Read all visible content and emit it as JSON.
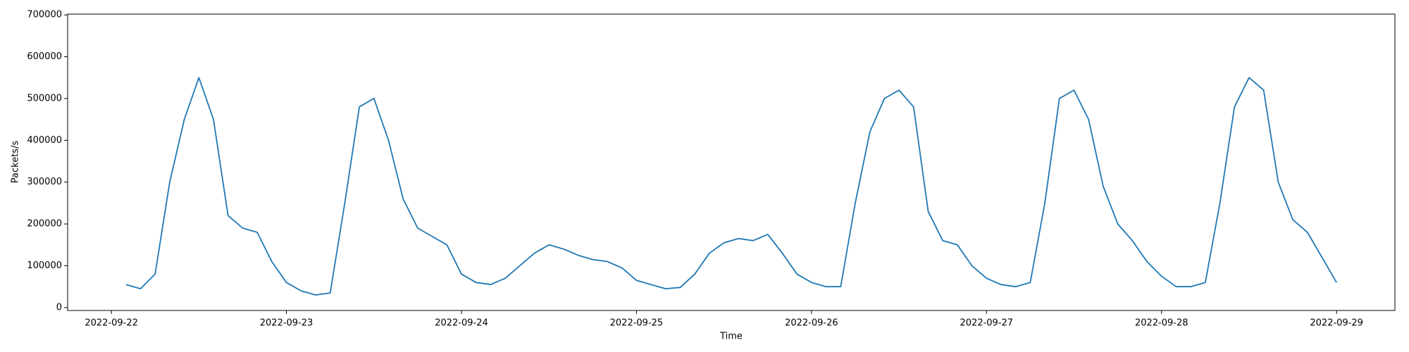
{
  "chart_data": {
    "type": "line",
    "x_label": "Time",
    "y_label": "Packets/s",
    "x": [
      "2022-09-22 02:00",
      "2022-09-22 04:00",
      "2022-09-22 06:00",
      "2022-09-22 08:00",
      "2022-09-22 10:00",
      "2022-09-22 12:00",
      "2022-09-22 14:00",
      "2022-09-22 16:00",
      "2022-09-22 18:00",
      "2022-09-22 20:00",
      "2022-09-22 22:00",
      "2022-09-23 00:00",
      "2022-09-23 02:00",
      "2022-09-23 04:00",
      "2022-09-23 06:00",
      "2022-09-23 08:00",
      "2022-09-23 10:00",
      "2022-09-23 12:00",
      "2022-09-23 14:00",
      "2022-09-23 16:00",
      "2022-09-23 18:00",
      "2022-09-23 20:00",
      "2022-09-23 22:00",
      "2022-09-24 00:00",
      "2022-09-24 02:00",
      "2022-09-24 04:00",
      "2022-09-24 06:00",
      "2022-09-24 08:00",
      "2022-09-24 10:00",
      "2022-09-24 12:00",
      "2022-09-24 14:00",
      "2022-09-24 16:00",
      "2022-09-24 18:00",
      "2022-09-24 20:00",
      "2022-09-24 22:00",
      "2022-09-25 00:00",
      "2022-09-25 02:00",
      "2022-09-25 04:00",
      "2022-09-25 06:00",
      "2022-09-25 08:00",
      "2022-09-25 10:00",
      "2022-09-25 12:00",
      "2022-09-25 14:00",
      "2022-09-25 16:00",
      "2022-09-25 18:00",
      "2022-09-25 20:00",
      "2022-09-25 22:00",
      "2022-09-26 00:00",
      "2022-09-26 02:00",
      "2022-09-26 04:00",
      "2022-09-26 06:00",
      "2022-09-26 08:00",
      "2022-09-26 10:00",
      "2022-09-26 12:00",
      "2022-09-26 14:00",
      "2022-09-26 16:00",
      "2022-09-26 18:00",
      "2022-09-26 20:00",
      "2022-09-26 22:00",
      "2022-09-27 00:00",
      "2022-09-27 02:00",
      "2022-09-27 04:00",
      "2022-09-27 06:00",
      "2022-09-27 08:00",
      "2022-09-27 10:00",
      "2022-09-27 12:00",
      "2022-09-27 14:00",
      "2022-09-27 16:00",
      "2022-09-27 18:00",
      "2022-09-27 20:00",
      "2022-09-27 22:00",
      "2022-09-28 00:00",
      "2022-09-28 02:00",
      "2022-09-28 04:00",
      "2022-09-28 06:00",
      "2022-09-28 08:00",
      "2022-09-28 10:00",
      "2022-09-28 12:00",
      "2022-09-28 14:00",
      "2022-09-28 16:00",
      "2022-09-28 18:00",
      "2022-09-28 20:00",
      "2022-09-28 22:00",
      "2022-09-29 00:00"
    ],
    "series": [
      {
        "color": "#1f77b4",
        "values": [
          55000,
          45000,
          80000,
          300000,
          450000,
          550000,
          450000,
          220000,
          190000,
          180000,
          110000,
          60000,
          40000,
          30000,
          35000,
          250000,
          480000,
          500000,
          400000,
          260000,
          190000,
          170000,
          150000,
          80000,
          60000,
          55000,
          70000,
          100000,
          130000,
          150000,
          140000,
          125000,
          115000,
          110000,
          95000,
          65000,
          55000,
          45000,
          48000,
          80000,
          130000,
          155000,
          165000,
          160000,
          175000,
          130000,
          80000,
          60000,
          50000,
          50000,
          250000,
          420000,
          500000,
          520000,
          480000,
          230000,
          160000,
          150000,
          100000,
          70000,
          55000,
          50000,
          60000,
          250000,
          500000,
          520000,
          450000,
          290000,
          200000,
          160000,
          110000,
          75000,
          50000,
          50000,
          60000,
          250000,
          480000,
          550000,
          520000,
          300000,
          210000,
          180000,
          120000,
          60000
        ]
      }
    ],
    "xlim": [
      "2022-09-21 18:00",
      "2022-09-29 08:00"
    ],
    "xticks": [
      "2022-09-22",
      "2022-09-23",
      "2022-09-24",
      "2022-09-25",
      "2022-09-26",
      "2022-09-27",
      "2022-09-28",
      "2022-09-29"
    ],
    "ylim": [
      -7000,
      702000
    ],
    "yticks": [
      0,
      100000,
      200000,
      300000,
      400000,
      500000,
      600000,
      700000
    ]
  }
}
